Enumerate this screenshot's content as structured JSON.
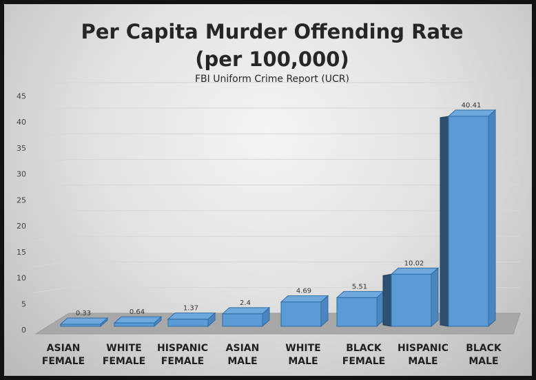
{
  "chart_data": {
    "type": "bar",
    "title_line1": "Per Capita Murder Offending Rate",
    "title_line2": "(per 100,000)",
    "subtitle": "FBI Uniform Crime Report (UCR)",
    "categories": [
      [
        "ASIAN",
        "FEMALE"
      ],
      [
        "WHITE",
        "FEMALE"
      ],
      [
        "HISPANIC",
        "FEMALE"
      ],
      [
        "ASIAN",
        "MALE"
      ],
      [
        "WHITE",
        "MALE"
      ],
      [
        "BLACK",
        "FEMALE"
      ],
      [
        "HISPANIC",
        "MALE"
      ],
      [
        "BLACK",
        "MALE"
      ]
    ],
    "values": [
      0.33,
      0.64,
      1.37,
      2.4,
      4.69,
      5.51,
      10.02,
      40.41
    ],
    "value_labels": [
      "0.33",
      "0.64",
      "1.37",
      "2.4",
      "4.69",
      "5.51",
      "10.02",
      "40.41"
    ],
    "ylim": [
      0,
      45
    ],
    "yticks": [
      0,
      5,
      10,
      15,
      20,
      25,
      30,
      35,
      40,
      45
    ],
    "grid": true,
    "legend": "none",
    "style": "3d-column",
    "bar_color": "#5b9bd5"
  }
}
